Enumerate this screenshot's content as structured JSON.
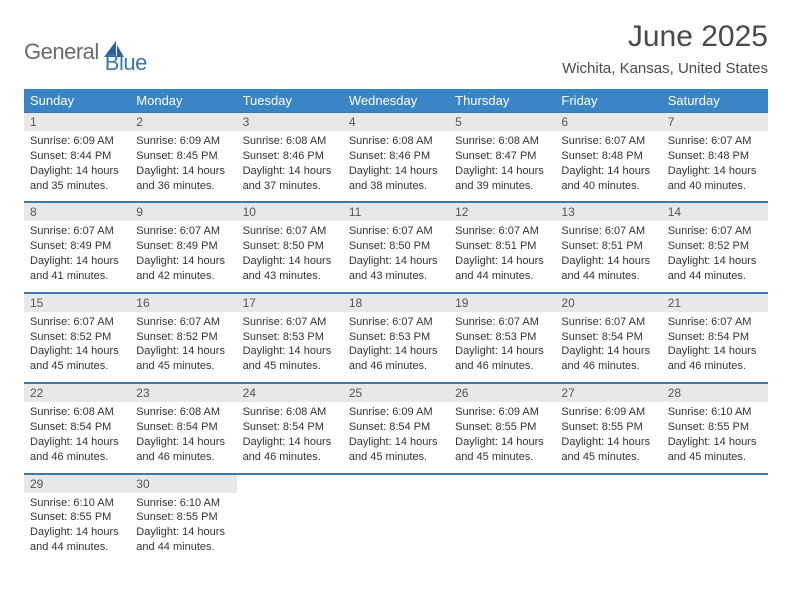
{
  "logo": {
    "word1": "General",
    "word2": "Blue",
    "icon_color": "#2b5f9e"
  },
  "title": "June 2025",
  "subtitle": "Wichita, Kansas, United States",
  "colors": {
    "header_bg": "#3a85c6",
    "daynum_bg": "#e8e8e8",
    "rule": "#3a78b5",
    "title_color": "#4a4a4a",
    "text": "#333333"
  },
  "day_headers": [
    "Sunday",
    "Monday",
    "Tuesday",
    "Wednesday",
    "Thursday",
    "Friday",
    "Saturday"
  ],
  "weeks": [
    {
      "nums": [
        "1",
        "2",
        "3",
        "4",
        "5",
        "6",
        "7"
      ],
      "cells": [
        {
          "sunrise": "6:09 AM",
          "sunset": "8:44 PM",
          "dl1": "14 hours",
          "dl2": "and 35 minutes."
        },
        {
          "sunrise": "6:09 AM",
          "sunset": "8:45 PM",
          "dl1": "14 hours",
          "dl2": "and 36 minutes."
        },
        {
          "sunrise": "6:08 AM",
          "sunset": "8:46 PM",
          "dl1": "14 hours",
          "dl2": "and 37 minutes."
        },
        {
          "sunrise": "6:08 AM",
          "sunset": "8:46 PM",
          "dl1": "14 hours",
          "dl2": "and 38 minutes."
        },
        {
          "sunrise": "6:08 AM",
          "sunset": "8:47 PM",
          "dl1": "14 hours",
          "dl2": "and 39 minutes."
        },
        {
          "sunrise": "6:07 AM",
          "sunset": "8:48 PM",
          "dl1": "14 hours",
          "dl2": "and 40 minutes."
        },
        {
          "sunrise": "6:07 AM",
          "sunset": "8:48 PM",
          "dl1": "14 hours",
          "dl2": "and 40 minutes."
        }
      ]
    },
    {
      "nums": [
        "8",
        "9",
        "10",
        "11",
        "12",
        "13",
        "14"
      ],
      "cells": [
        {
          "sunrise": "6:07 AM",
          "sunset": "8:49 PM",
          "dl1": "14 hours",
          "dl2": "and 41 minutes."
        },
        {
          "sunrise": "6:07 AM",
          "sunset": "8:49 PM",
          "dl1": "14 hours",
          "dl2": "and 42 minutes."
        },
        {
          "sunrise": "6:07 AM",
          "sunset": "8:50 PM",
          "dl1": "14 hours",
          "dl2": "and 43 minutes."
        },
        {
          "sunrise": "6:07 AM",
          "sunset": "8:50 PM",
          "dl1": "14 hours",
          "dl2": "and 43 minutes."
        },
        {
          "sunrise": "6:07 AM",
          "sunset": "8:51 PM",
          "dl1": "14 hours",
          "dl2": "and 44 minutes."
        },
        {
          "sunrise": "6:07 AM",
          "sunset": "8:51 PM",
          "dl1": "14 hours",
          "dl2": "and 44 minutes."
        },
        {
          "sunrise": "6:07 AM",
          "sunset": "8:52 PM",
          "dl1": "14 hours",
          "dl2": "and 44 minutes."
        }
      ]
    },
    {
      "nums": [
        "15",
        "16",
        "17",
        "18",
        "19",
        "20",
        "21"
      ],
      "cells": [
        {
          "sunrise": "6:07 AM",
          "sunset": "8:52 PM",
          "dl1": "14 hours",
          "dl2": "and 45 minutes."
        },
        {
          "sunrise": "6:07 AM",
          "sunset": "8:52 PM",
          "dl1": "14 hours",
          "dl2": "and 45 minutes."
        },
        {
          "sunrise": "6:07 AM",
          "sunset": "8:53 PM",
          "dl1": "14 hours",
          "dl2": "and 45 minutes."
        },
        {
          "sunrise": "6:07 AM",
          "sunset": "8:53 PM",
          "dl1": "14 hours",
          "dl2": "and 46 minutes."
        },
        {
          "sunrise": "6:07 AM",
          "sunset": "8:53 PM",
          "dl1": "14 hours",
          "dl2": "and 46 minutes."
        },
        {
          "sunrise": "6:07 AM",
          "sunset": "8:54 PM",
          "dl1": "14 hours",
          "dl2": "and 46 minutes."
        },
        {
          "sunrise": "6:07 AM",
          "sunset": "8:54 PM",
          "dl1": "14 hours",
          "dl2": "and 46 minutes."
        }
      ]
    },
    {
      "nums": [
        "22",
        "23",
        "24",
        "25",
        "26",
        "27",
        "28"
      ],
      "cells": [
        {
          "sunrise": "6:08 AM",
          "sunset": "8:54 PM",
          "dl1": "14 hours",
          "dl2": "and 46 minutes."
        },
        {
          "sunrise": "6:08 AM",
          "sunset": "8:54 PM",
          "dl1": "14 hours",
          "dl2": "and 46 minutes."
        },
        {
          "sunrise": "6:08 AM",
          "sunset": "8:54 PM",
          "dl1": "14 hours",
          "dl2": "and 46 minutes."
        },
        {
          "sunrise": "6:09 AM",
          "sunset": "8:54 PM",
          "dl1": "14 hours",
          "dl2": "and 45 minutes."
        },
        {
          "sunrise": "6:09 AM",
          "sunset": "8:55 PM",
          "dl1": "14 hours",
          "dl2": "and 45 minutes."
        },
        {
          "sunrise": "6:09 AM",
          "sunset": "8:55 PM",
          "dl1": "14 hours",
          "dl2": "and 45 minutes."
        },
        {
          "sunrise": "6:10 AM",
          "sunset": "8:55 PM",
          "dl1": "14 hours",
          "dl2": "and 45 minutes."
        }
      ]
    },
    {
      "nums": [
        "29",
        "30",
        "",
        "",
        "",
        "",
        ""
      ],
      "cells": [
        {
          "sunrise": "6:10 AM",
          "sunset": "8:55 PM",
          "dl1": "14 hours",
          "dl2": "and 44 minutes."
        },
        {
          "sunrise": "6:10 AM",
          "sunset": "8:55 PM",
          "dl1": "14 hours",
          "dl2": "and 44 minutes."
        },
        null,
        null,
        null,
        null,
        null
      ]
    }
  ],
  "labels": {
    "sunrise": "Sunrise: ",
    "sunset": "Sunset: ",
    "daylight": "Daylight: "
  }
}
